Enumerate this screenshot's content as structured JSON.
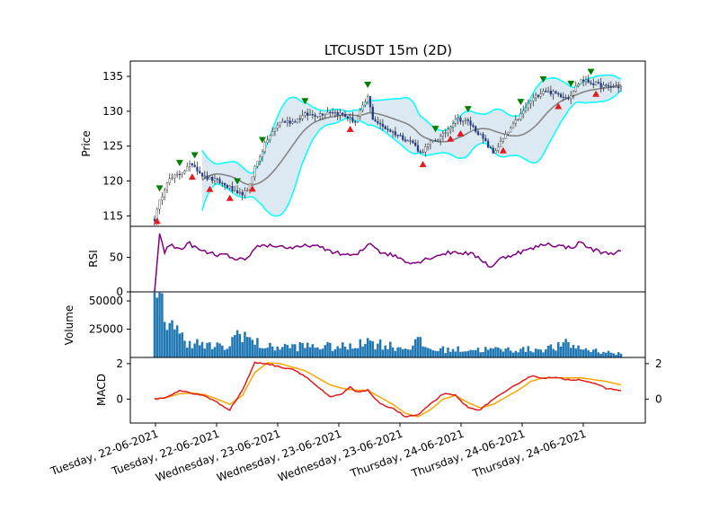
{
  "chart_data": {
    "type": "candlestick",
    "title": "LTCUSDT 15m (2D)",
    "x_tick_labels": [
      "Tuesday, 22-06-2021",
      "Tuesday, 22-06-2021",
      "Wednesday, 23-06-2021",
      "Wednesday, 23-06-2021",
      "Wednesday, 23-06-2021",
      "Thursday, 24-06-2021",
      "Thursday, 24-06-2021",
      "Thursday, 24-06-2021"
    ],
    "panels": {
      "price": {
        "ylabel": "Price",
        "ylim": [
          113.5,
          137.2
        ],
        "yticks": [
          115,
          120,
          125,
          130,
          135
        ],
        "close_key_points": [
          [
            0,
            114.5
          ],
          [
            2,
            117
          ],
          [
            5,
            120
          ],
          [
            10,
            121
          ],
          [
            15,
            122.5
          ],
          [
            20,
            120.5
          ],
          [
            25,
            120
          ],
          [
            30,
            119
          ],
          [
            33,
            118
          ],
          [
            37,
            118.5
          ],
          [
            40,
            122
          ],
          [
            45,
            126
          ],
          [
            50,
            128.5
          ],
          [
            55,
            128.5
          ],
          [
            60,
            129.5
          ],
          [
            65,
            129.5
          ],
          [
            70,
            130
          ],
          [
            75,
            129.5
          ],
          [
            80,
            128.5
          ],
          [
            85,
            132
          ],
          [
            87,
            129
          ],
          [
            90,
            128
          ],
          [
            95,
            127
          ],
          [
            100,
            126
          ],
          [
            103,
            125.5
          ],
          [
            106,
            124
          ],
          [
            110,
            125.5
          ],
          [
            115,
            126.5
          ],
          [
            120,
            129
          ],
          [
            125,
            128.5
          ],
          [
            130,
            126.5
          ],
          [
            135,
            124
          ],
          [
            140,
            126.5
          ],
          [
            145,
            129
          ],
          [
            150,
            131.5
          ],
          [
            155,
            133
          ],
          [
            160,
            132.5
          ],
          [
            165,
            132
          ],
          [
            170,
            134.5
          ],
          [
            175,
            134
          ],
          [
            180,
            133.5
          ],
          [
            186,
            133.5
          ]
        ],
        "bollinger_color": "#00ffff",
        "sma_color": "#808080",
        "band_fill": "#dce8f2",
        "buy_marker_color": "#e41a1c",
        "sell_marker_color": "#008000",
        "sell_signal_indices": [
          2,
          10,
          16,
          33,
          43,
          60,
          85,
          112,
          125,
          146,
          155,
          166,
          174
        ],
        "buy_signal_indices": [
          1,
          15,
          22,
          30,
          39,
          78,
          107,
          122,
          118,
          139,
          161,
          176
        ]
      },
      "rsi": {
        "ylabel": "RSI",
        "ylim": [
          0,
          95
        ],
        "yticks": [
          0,
          50
        ],
        "color": "#800080",
        "key_points": [
          [
            0,
            0
          ],
          [
            2,
            85
          ],
          [
            4,
            58
          ],
          [
            6,
            68
          ],
          [
            10,
            62
          ],
          [
            14,
            70
          ],
          [
            18,
            60
          ],
          [
            24,
            54
          ],
          [
            30,
            52
          ],
          [
            32,
            45
          ],
          [
            34,
            48
          ],
          [
            36,
            44
          ],
          [
            38,
            50
          ],
          [
            40,
            65
          ],
          [
            44,
            68
          ],
          [
            50,
            66
          ],
          [
            56,
            63
          ],
          [
            62,
            68
          ],
          [
            68,
            62
          ],
          [
            74,
            55
          ],
          [
            80,
            52
          ],
          [
            84,
            64
          ],
          [
            86,
            72
          ],
          [
            90,
            58
          ],
          [
            96,
            52
          ],
          [
            100,
            45
          ],
          [
            104,
            42
          ],
          [
            110,
            50
          ],
          [
            116,
            56
          ],
          [
            120,
            58
          ],
          [
            126,
            55
          ],
          [
            130,
            48
          ],
          [
            134,
            36
          ],
          [
            138,
            48
          ],
          [
            144,
            56
          ],
          [
            150,
            62
          ],
          [
            156,
            70
          ],
          [
            162,
            66
          ],
          [
            166,
            64
          ],
          [
            170,
            72
          ],
          [
            174,
            62
          ],
          [
            180,
            56
          ],
          [
            186,
            58
          ]
        ]
      },
      "volume": {
        "ylabel": "Volume",
        "ylim": [
          0,
          58000
        ],
        "yticks": [
          25000,
          50000
        ],
        "color": "#1f77b4"
      },
      "macd": {
        "ylabel": "MACD",
        "ylim": [
          -1.35,
          2.35
        ],
        "yticks": [
          0,
          2
        ],
        "right_yticks": [
          0,
          2
        ],
        "macd_color": "#e41a1c",
        "signal_color": "#ffa500",
        "macd_key_points": [
          [
            0,
            0
          ],
          [
            5,
            0.1
          ],
          [
            10,
            0.5
          ],
          [
            15,
            0.3
          ],
          [
            20,
            0.2
          ],
          [
            25,
            -0.2
          ],
          [
            30,
            -0.6
          ],
          [
            35,
            0.5
          ],
          [
            40,
            2.05
          ],
          [
            45,
            2.0
          ],
          [
            50,
            1.8
          ],
          [
            55,
            1.7
          ],
          [
            60,
            1.3
          ],
          [
            65,
            0.7
          ],
          [
            70,
            0.1
          ],
          [
            75,
            0.3
          ],
          [
            78,
            0.7
          ],
          [
            80,
            0.4
          ],
          [
            85,
            0.5
          ],
          [
            90,
            -0.3
          ],
          [
            95,
            -0.5
          ],
          [
            100,
            -1.0
          ],
          [
            105,
            -0.9
          ],
          [
            110,
            -0.3
          ],
          [
            115,
            0.3
          ],
          [
            120,
            0.2
          ],
          [
            125,
            -0.5
          ],
          [
            130,
            -0.6
          ],
          [
            135,
            0.0
          ],
          [
            140,
            0.4
          ],
          [
            145,
            0.9
          ],
          [
            150,
            1.3
          ],
          [
            155,
            1.2
          ],
          [
            160,
            1.2
          ],
          [
            165,
            1.1
          ],
          [
            170,
            1.1
          ],
          [
            175,
            0.9
          ],
          [
            180,
            0.6
          ],
          [
            186,
            0.5
          ]
        ],
        "signal_key_points": [
          [
            0,
            0
          ],
          [
            5,
            0.1
          ],
          [
            10,
            0.3
          ],
          [
            15,
            0.35
          ],
          [
            20,
            0.25
          ],
          [
            25,
            0.0
          ],
          [
            30,
            -0.3
          ],
          [
            35,
            0.2
          ],
          [
            40,
            1.5
          ],
          [
            45,
            2.05
          ],
          [
            50,
            2.0
          ],
          [
            55,
            1.8
          ],
          [
            60,
            1.6
          ],
          [
            65,
            1.2
          ],
          [
            70,
            0.8
          ],
          [
            75,
            0.6
          ],
          [
            80,
            0.5
          ],
          [
            85,
            0.5
          ],
          [
            90,
            0.1
          ],
          [
            95,
            -0.3
          ],
          [
            100,
            -0.8
          ],
          [
            105,
            -1.0
          ],
          [
            110,
            -0.6
          ],
          [
            115,
            0.0
          ],
          [
            120,
            0.2
          ],
          [
            125,
            -0.2
          ],
          [
            130,
            -0.5
          ],
          [
            135,
            -0.3
          ],
          [
            140,
            0.1
          ],
          [
            145,
            0.5
          ],
          [
            150,
            1.0
          ],
          [
            155,
            1.2
          ],
          [
            160,
            1.2
          ],
          [
            165,
            1.2
          ],
          [
            170,
            1.2
          ],
          [
            175,
            1.1
          ],
          [
            180,
            1.0
          ],
          [
            186,
            0.8
          ]
        ]
      }
    }
  }
}
